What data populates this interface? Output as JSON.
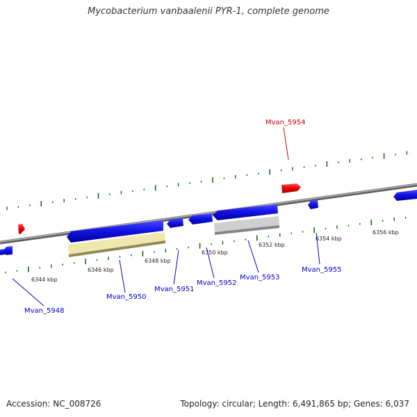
{
  "title": "Mycobacterium vanbaalenii PYR-1, complete genome",
  "accession": "Accession: NC_008726",
  "summary": "Topology: circular; Length: 6,491,865 bp; Genes: 6,037",
  "colors": {
    "forward_gene": "#cc0000",
    "reverse_gene": "#0000cc",
    "rna_gene": "#eee8aa",
    "pseudo_gene": "#c0c0c0",
    "backbone": "#888888",
    "ticks": "#007700"
  },
  "tick_labels": [
    "6344 kbp",
    "6346 kbp",
    "6348 kbp",
    "6350 kbp",
    "6352 kbp",
    "6354 kbp",
    "6356 kbp"
  ],
  "gene_labels": {
    "forward": [
      "Mvan_5954"
    ],
    "reverse": [
      "Mvan_5948",
      "Mvan_5950",
      "Mvan_5951",
      "Mvan_5952",
      "Mvan_5953",
      "Mvan_5955"
    ]
  }
}
